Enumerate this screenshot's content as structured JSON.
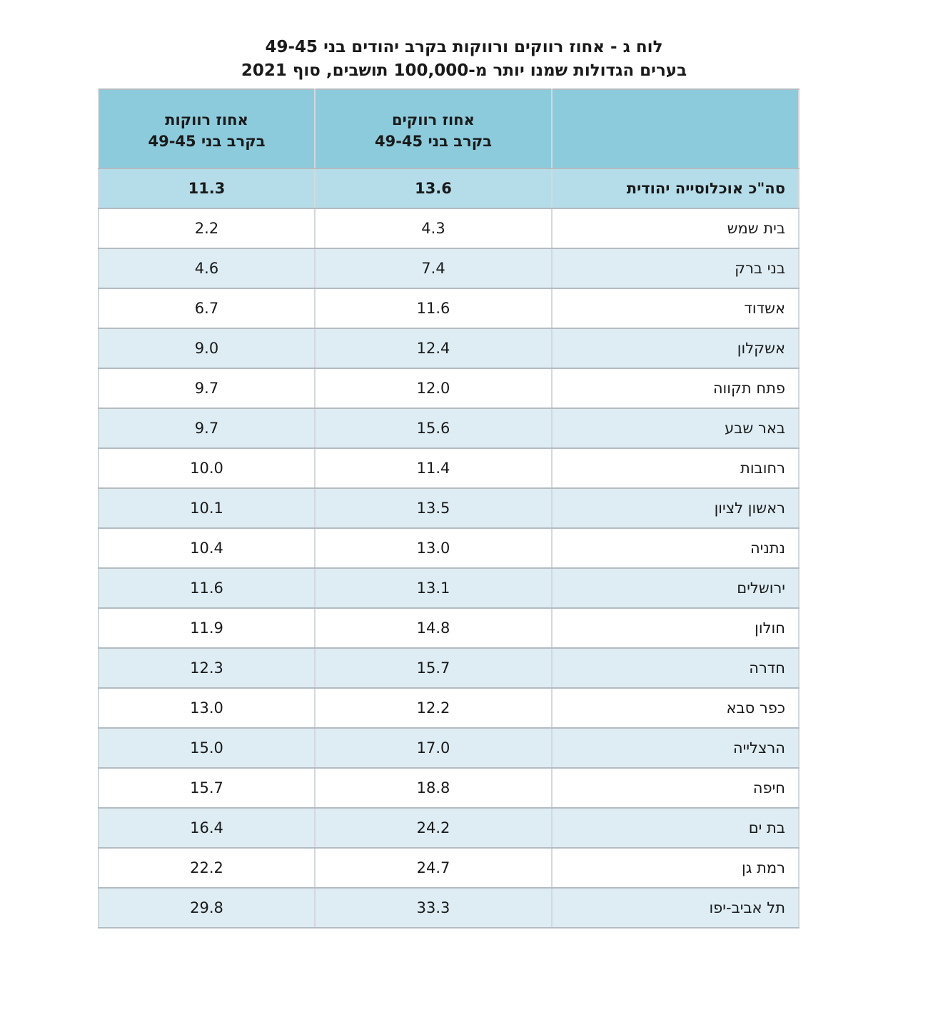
{
  "page": {
    "title_line1": "לוח ג - אחוז רווקים ורווקות בקרב יהודים בני 49-45",
    "title_line2": "בערים הגדולות שמנו יותר מ-100,000 תושבים, סוף 2021"
  },
  "colors": {
    "header_bg": "#8ccbdc",
    "total_row_bg": "#b5dde9",
    "stripe_row_bg": "#ddedf3",
    "row_bg": "#ffffff",
    "border_horizontal": "#b3bcc0",
    "border_vertical": "#d2d9dc",
    "text": "#1a1a1a"
  },
  "table": {
    "columns": {
      "city": {
        "header": ""
      },
      "single_men": {
        "header_line1": "אחוז רווקים",
        "header_line2": "בקרב בני 49-45"
      },
      "single_women": {
        "header_line1": "אחוז רווקות",
        "header_line2": "בקרב בני 49-45"
      }
    },
    "rows": [
      {
        "label": "סה\"כ אוכלוסייה יהודית",
        "single_men_pct": "13.6",
        "single_women_pct": "11.3",
        "is_total": true
      },
      {
        "label": "בית שמש",
        "single_men_pct": "4.3",
        "single_women_pct": "2.2"
      },
      {
        "label": "בני ברק",
        "single_men_pct": "7.4",
        "single_women_pct": "4.6"
      },
      {
        "label": "אשדוד",
        "single_men_pct": "11.6",
        "single_women_pct": "6.7"
      },
      {
        "label": "אשקלון",
        "single_men_pct": "12.4",
        "single_women_pct": "9.0"
      },
      {
        "label": "פתח תקווה",
        "single_men_pct": "12.0",
        "single_women_pct": "9.7"
      },
      {
        "label": "באר שבע",
        "single_men_pct": "15.6",
        "single_women_pct": "9.7"
      },
      {
        "label": "רחובות",
        "single_men_pct": "11.4",
        "single_women_pct": "10.0"
      },
      {
        "label": "ראשון לציון",
        "single_men_pct": "13.5",
        "single_women_pct": "10.1"
      },
      {
        "label": "נתניה",
        "single_men_pct": "13.0",
        "single_women_pct": "10.4"
      },
      {
        "label": "ירושלים",
        "single_men_pct": "13.1",
        "single_women_pct": "11.6"
      },
      {
        "label": "חולון",
        "single_men_pct": "14.8",
        "single_women_pct": "11.9"
      },
      {
        "label": "חדרה",
        "single_men_pct": "15.7",
        "single_women_pct": "12.3"
      },
      {
        "label": "כפר סבא",
        "single_men_pct": "12.2",
        "single_women_pct": "13.0"
      },
      {
        "label": "הרצלייה",
        "single_men_pct": "17.0",
        "single_women_pct": "15.0"
      },
      {
        "label": "חיפה",
        "single_men_pct": "18.8",
        "single_women_pct": "15.7"
      },
      {
        "label": "בת ים",
        "single_men_pct": "24.2",
        "single_women_pct": "16.4"
      },
      {
        "label": "רמת גן",
        "single_men_pct": "24.7",
        "single_women_pct": "22.2"
      },
      {
        "label": "תל אביב-יפו",
        "single_men_pct": "33.3",
        "single_women_pct": "29.8"
      }
    ]
  }
}
